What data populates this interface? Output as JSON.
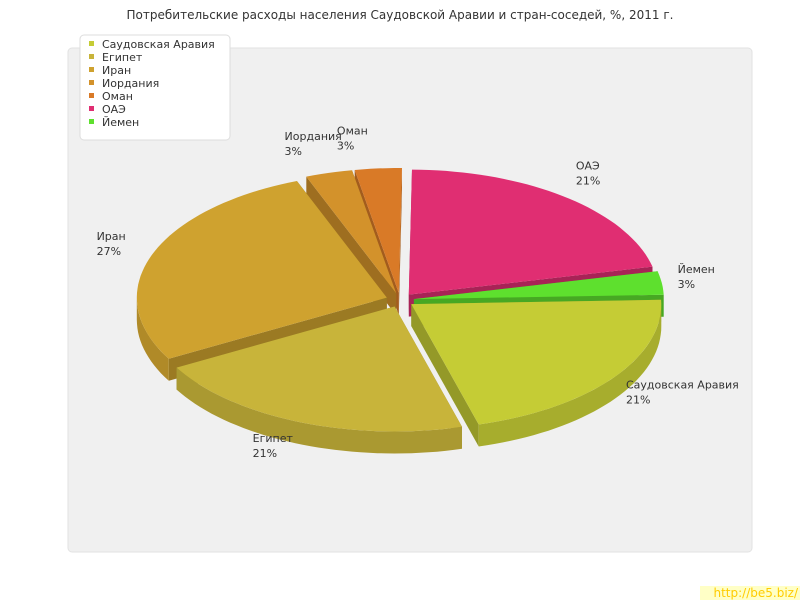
{
  "chart_data": {
    "type": "pie",
    "title": "Потребительские расходы населения Саудовской Аравии и стран-соседей, %, 2011 г.",
    "categories": [
      "Саудовская Аравия",
      "Египет",
      "Иран",
      "Иордания",
      "Оман",
      "ОАЭ",
      "Йемен"
    ],
    "values": [
      21,
      21,
      27,
      3,
      3,
      21,
      3
    ],
    "value_labels": [
      "21%",
      "21%",
      "27%",
      "3%",
      "3%",
      "21%",
      "3%"
    ],
    "colors": [
      "#c5cc35",
      "#c8b43a",
      "#cfa22f",
      "#d3922b",
      "#d97a27",
      "#e02e72",
      "#5ee02e"
    ],
    "legend": "top-left"
  },
  "watermark": "http://be5.biz/"
}
